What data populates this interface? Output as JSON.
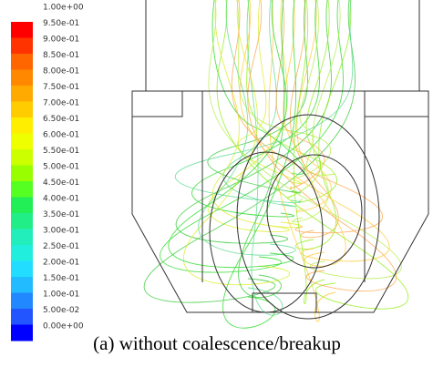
{
  "colorbar": {
    "labels": [
      "1.00e+00",
      "9.50e-01",
      "9.00e-01",
      "8.50e-01",
      "8.00e-01",
      "7.50e-01",
      "7.00e-01",
      "6.50e-01",
      "6.00e-01",
      "5.50e-01",
      "5.00e-01",
      "4.50e-01",
      "4.00e-01",
      "3.50e-01",
      "3.00e-01",
      "2.50e-01",
      "2.00e-01",
      "1.50e-01",
      "1.00e-01",
      "5.00e-02",
      "0.00e+00"
    ],
    "colors": [
      "#ff0000",
      "#ff3300",
      "#ff6600",
      "#ff8800",
      "#ffaa00",
      "#ffcc00",
      "#ffee00",
      "#eeff00",
      "#ccff00",
      "#99ff00",
      "#55ff22",
      "#22ee55",
      "#22ee88",
      "#22eebb",
      "#22eedd",
      "#22ddff",
      "#22bbff",
      "#2288ff",
      "#2255ff",
      "#0000ff"
    ]
  },
  "caption": "(a) without coalescence/breakup"
}
